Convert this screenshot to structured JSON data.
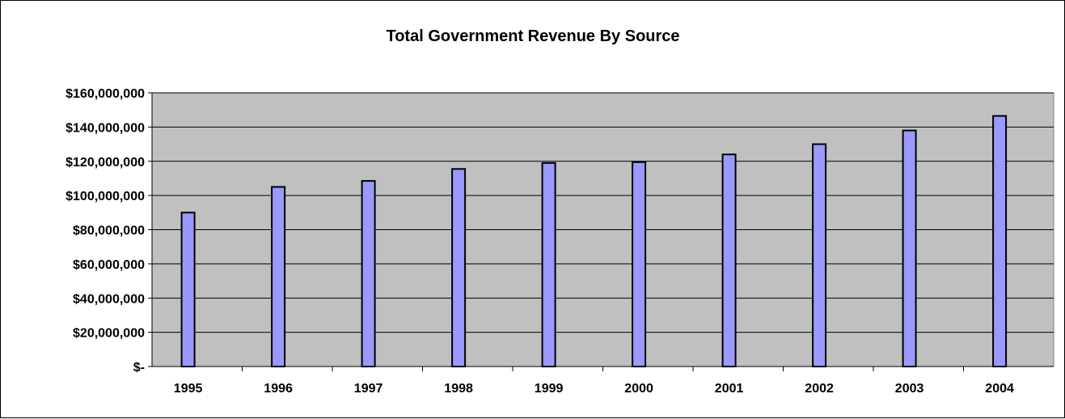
{
  "chart_data": {
    "type": "bar",
    "title": "Total Government Revenue By Source",
    "xlabel": "",
    "ylabel": "",
    "categories": [
      "1995",
      "1996",
      "1997",
      "1998",
      "1999",
      "2000",
      "2001",
      "2002",
      "2003",
      "2004"
    ],
    "values": [
      90000000,
      105000000,
      108500000,
      115500000,
      119000000,
      119500000,
      124000000,
      130000000,
      138000000,
      146500000
    ],
    "ylim": [
      0,
      160000000
    ],
    "yticks": [
      0,
      20000000,
      40000000,
      60000000,
      80000000,
      100000000,
      120000000,
      140000000,
      160000000
    ],
    "ytick_labels": [
      "$-",
      "$20,000,000",
      "$40,000,000",
      "$60,000,000",
      "$80,000,000",
      "$100,000,000",
      "$120,000,000",
      "$140,000,000",
      "$160,000,000"
    ],
    "grid": true,
    "legend": "none",
    "colors": {
      "plot_background": "#c0c0c0",
      "bar_fill": "#9999ff",
      "bar_stroke": "#000000",
      "gridline": "#000000"
    }
  }
}
